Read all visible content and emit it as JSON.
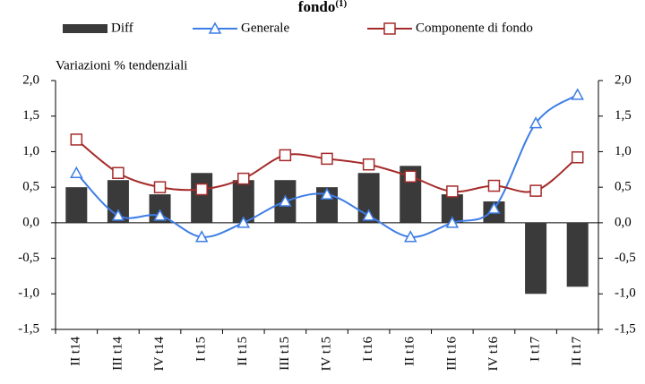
{
  "chart_data": {
    "type": "bar-line",
    "title": "fondo",
    "title_note": "(1)",
    "annotation": "Variazioni % tendenziali",
    "categories": [
      "II t14",
      "III t14",
      "IV t14",
      "I t15",
      "II t15",
      "III t15",
      "IV t15",
      "I t16",
      "II t16",
      "III t16",
      "IV t16",
      "I t17",
      "II t17"
    ],
    "series": [
      {
        "name": "Diff",
        "kind": "bar",
        "color": "#3a3a3a",
        "values": [
          0.5,
          0.6,
          0.4,
          0.7,
          0.6,
          0.6,
          0.5,
          0.7,
          0.8,
          0.4,
          0.3,
          -1.0,
          -0.9
        ]
      },
      {
        "name": "Generale",
        "kind": "line",
        "marker": "triangle",
        "color": "#3d7de6",
        "values": [
          0.7,
          0.1,
          0.1,
          -0.2,
          0.0,
          0.3,
          0.4,
          0.1,
          -0.2,
          0.0,
          0.2,
          1.4,
          1.8
        ]
      },
      {
        "name": "Componente di fondo",
        "kind": "line",
        "marker": "square",
        "color": "#a52a2a",
        "values": [
          1.17,
          0.7,
          0.5,
          0.47,
          0.62,
          0.95,
          0.9,
          0.82,
          0.65,
          0.44,
          0.52,
          0.45,
          0.92
        ]
      }
    ],
    "ylim": [
      -1.5,
      2.0
    ],
    "yticks": [
      {
        "value": -1.5,
        "label": "-1,5"
      },
      {
        "value": -1.0,
        "label": "-1,0"
      },
      {
        "value": -0.5,
        "label": "-0,5"
      },
      {
        "value": 0.0,
        "label": "0,0"
      },
      {
        "value": 0.5,
        "label": "0,5"
      },
      {
        "value": 1.0,
        "label": "1,0"
      },
      {
        "value": 1.5,
        "label": "1,5"
      },
      {
        "value": 2.0,
        "label": "2,0"
      }
    ],
    "y2lim": [
      -1.5,
      2.0
    ],
    "y2ticks": [
      {
        "value": -1.5,
        "label": "-1,5"
      },
      {
        "value": -1.0,
        "label": "-1,0"
      },
      {
        "value": -0.5,
        "label": "-0,5"
      },
      {
        "value": 0.0,
        "label": "0,0"
      },
      {
        "value": 0.5,
        "label": "0,5"
      },
      {
        "value": 1.0,
        "label": "1,0"
      },
      {
        "value": 1.5,
        "label": "1,5"
      },
      {
        "value": 2.0,
        "label": "2,0"
      }
    ],
    "grid": false
  }
}
